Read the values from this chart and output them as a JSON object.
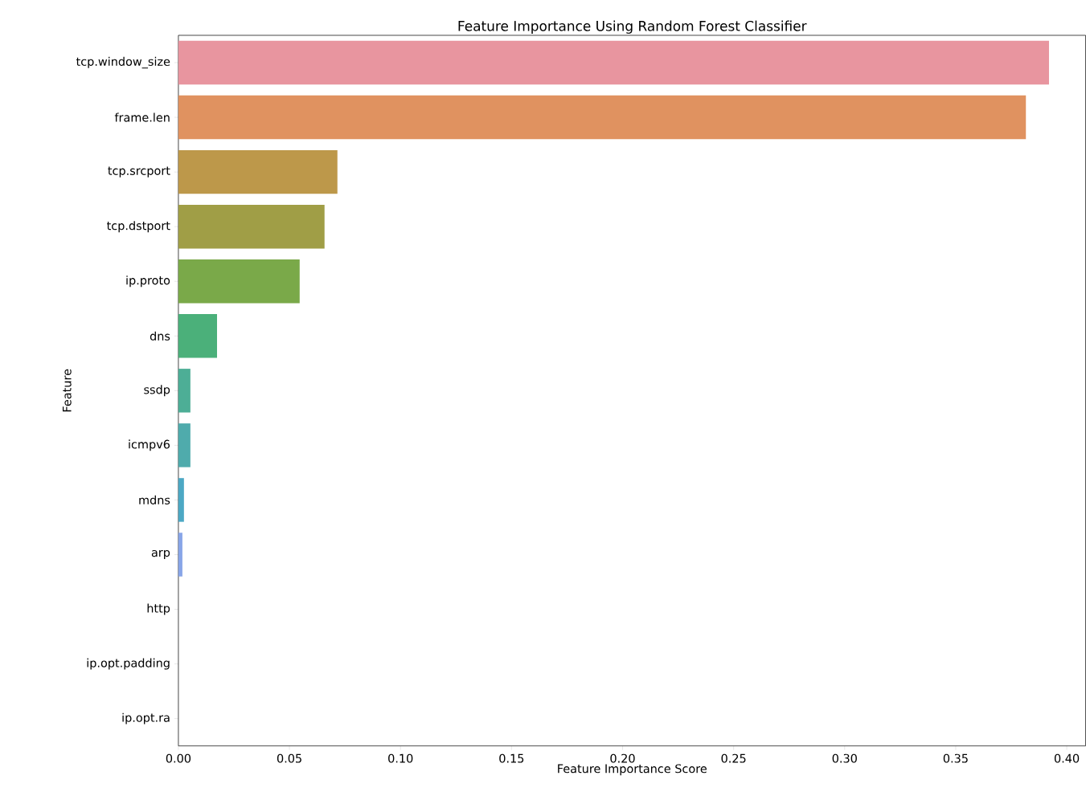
{
  "chart_data": {
    "type": "bar",
    "orientation": "horizontal",
    "title": "Feature Importance Using Random Forest Classifier",
    "xlabel": "Feature Importance Score",
    "ylabel": "Feature",
    "categories": [
      "tcp.window_size",
      "frame.len",
      "tcp.srcport",
      "tcp.dstport",
      "ip.proto",
      "dns",
      "ssdp",
      "icmpv6",
      "mdns",
      "arp",
      "http",
      "ip.opt.padding",
      "ip.opt.ra"
    ],
    "values": [
      0.392,
      0.3816,
      0.0716,
      0.0658,
      0.0546,
      0.0174,
      0.0054,
      0.0054,
      0.0025,
      0.0018,
      null,
      null,
      null
    ],
    "colors": [
      "#e8959f",
      "#e09260",
      "#bd984a",
      "#a09e46",
      "#7aa949",
      "#4bb07a",
      "#4dae96",
      "#4fabac",
      "#4ca8c4",
      "#88a5e8",
      "#a89be8",
      "#d08ee0",
      "#e58fc6"
    ],
    "xlim": [
      0,
      0.4085
    ],
    "xticks": [
      {
        "value": 0,
        "label": "0.00"
      },
      0.05,
      {
        "value": 0.1,
        "label": "0.10"
      },
      0.15,
      {
        "value": 0.2,
        "label": "0.20"
      },
      0.25,
      {
        "value": 0.3,
        "label": "0.30"
      },
      0.35,
      {
        "value": 0.4,
        "label": "0.40"
      }
    ]
  }
}
